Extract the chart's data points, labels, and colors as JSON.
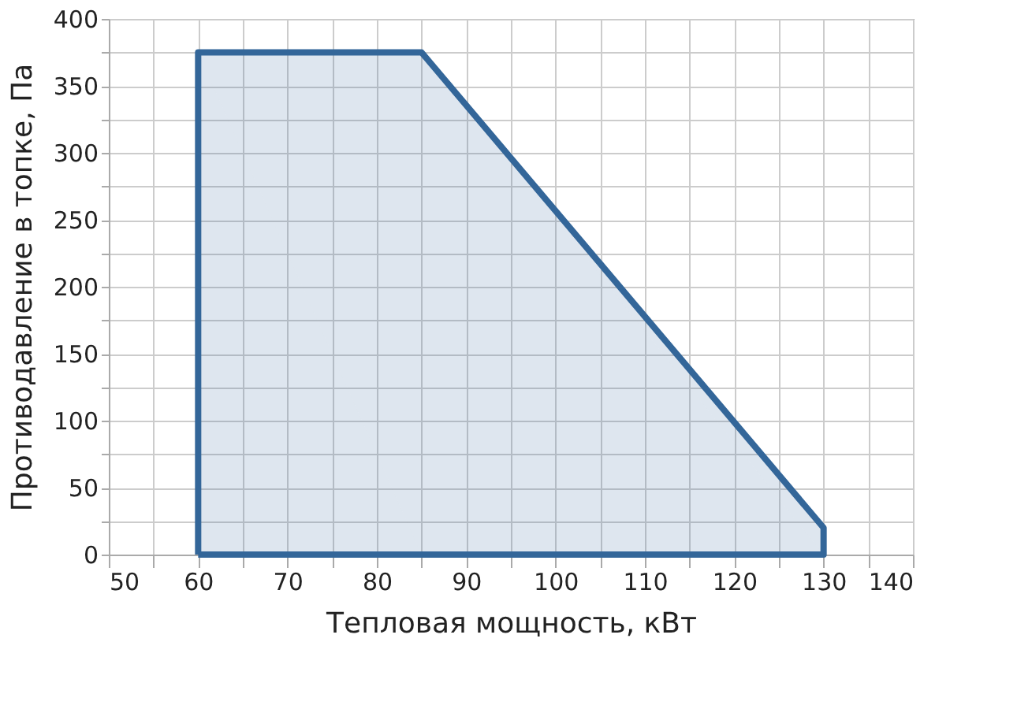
{
  "chart_data": {
    "type": "area",
    "xlabel": "Тепловая мощность, кВт",
    "ylabel": "Противодавление в топке, Па",
    "series": [
      {
        "color": "#336699",
        "x": [
          60,
          60,
          85,
          130,
          130,
          60
        ],
        "values": [
          0,
          375,
          375,
          20,
          0,
          0
        ]
      }
    ],
    "xlim": [
      50,
      140
    ],
    "ylim": [
      0,
      400
    ],
    "xticks": [
      50,
      {
        "value": 55,
        "label": null
      },
      60,
      {
        "value": 65,
        "label": null
      },
      70,
      {
        "value": 75,
        "label": null
      },
      80,
      {
        "value": 85,
        "label": null
      },
      90,
      {
        "value": 95,
        "label": null
      },
      100,
      {
        "value": 105,
        "label": null
      },
      110,
      {
        "value": 115,
        "label": null
      },
      120,
      {
        "value": 125,
        "label": null
      },
      130,
      {
        "value": 135,
        "label": null
      },
      140
    ],
    "yticks": [
      0,
      {
        "value": 25,
        "label": null
      },
      50,
      {
        "value": 75,
        "label": null
      },
      100,
      {
        "value": 125,
        "label": null
      },
      150,
      {
        "value": 175,
        "label": null
      },
      200,
      {
        "value": 225,
        "label": null
      },
      250,
      {
        "value": 275,
        "label": null
      },
      300,
      {
        "value": 325,
        "label": null
      },
      350,
      {
        "value": 375,
        "label": null
      },
      400
    ],
    "grid": true
  }
}
